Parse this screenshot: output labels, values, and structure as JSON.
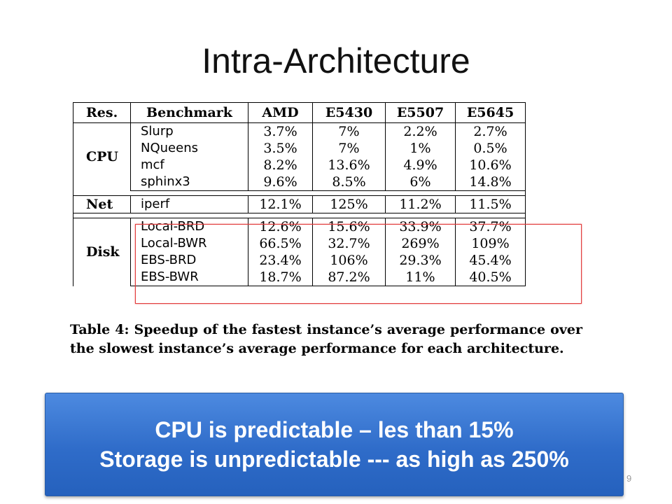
{
  "slide": {
    "title": "Intra-Architecture",
    "page_number": "9"
  },
  "table": {
    "headers": [
      "Res.",
      "Benchmark",
      "AMD",
      "E5430",
      "E5507",
      "E5645"
    ],
    "groups": [
      {
        "name": "CPU",
        "rows": [
          {
            "benchmark": "Slurp",
            "values": [
              "3.7%",
              "7%",
              "2.2%",
              "2.7%"
            ]
          },
          {
            "benchmark": "NQueens",
            "values": [
              "3.5%",
              "7%",
              "1%",
              "0.5%"
            ]
          },
          {
            "benchmark": "mcf",
            "values": [
              "8.2%",
              "13.6%",
              "4.9%",
              "10.6%"
            ]
          },
          {
            "benchmark": "sphinx3",
            "values": [
              "9.6%",
              "8.5%",
              "6%",
              "14.8%"
            ]
          }
        ]
      },
      {
        "name": "Net",
        "rows": [
          {
            "benchmark": "iperf",
            "values": [
              "12.1%",
              "125%",
              "11.2%",
              "11.5%"
            ]
          }
        ]
      },
      {
        "name": "Disk",
        "rows": [
          {
            "benchmark": "Local-BRD",
            "values": [
              "12.6%",
              "15.6%",
              "33.9%",
              "37.7%"
            ]
          },
          {
            "benchmark": "Local-BWR",
            "values": [
              "66.5%",
              "32.7%",
              "269%",
              "109%"
            ]
          },
          {
            "benchmark": "EBS-BRD",
            "values": [
              "23.4%",
              "106%",
              "29.3%",
              "45.4%"
            ]
          },
          {
            "benchmark": "EBS-BWR",
            "values": [
              "18.7%",
              "87.2%",
              "11%",
              "40.5%"
            ]
          }
        ]
      }
    ],
    "caption": "Table 4: Speedup of the fastest instance’s average performance over the slowest instance’s average performance for each architecture.",
    "highlight_color": "#e23b3b"
  },
  "callout": {
    "line1": "CPU is predictable – les than 15%",
    "line2": "Storage is unpredictable --- as high as 250%",
    "background_color": "#2f6cc9"
  }
}
